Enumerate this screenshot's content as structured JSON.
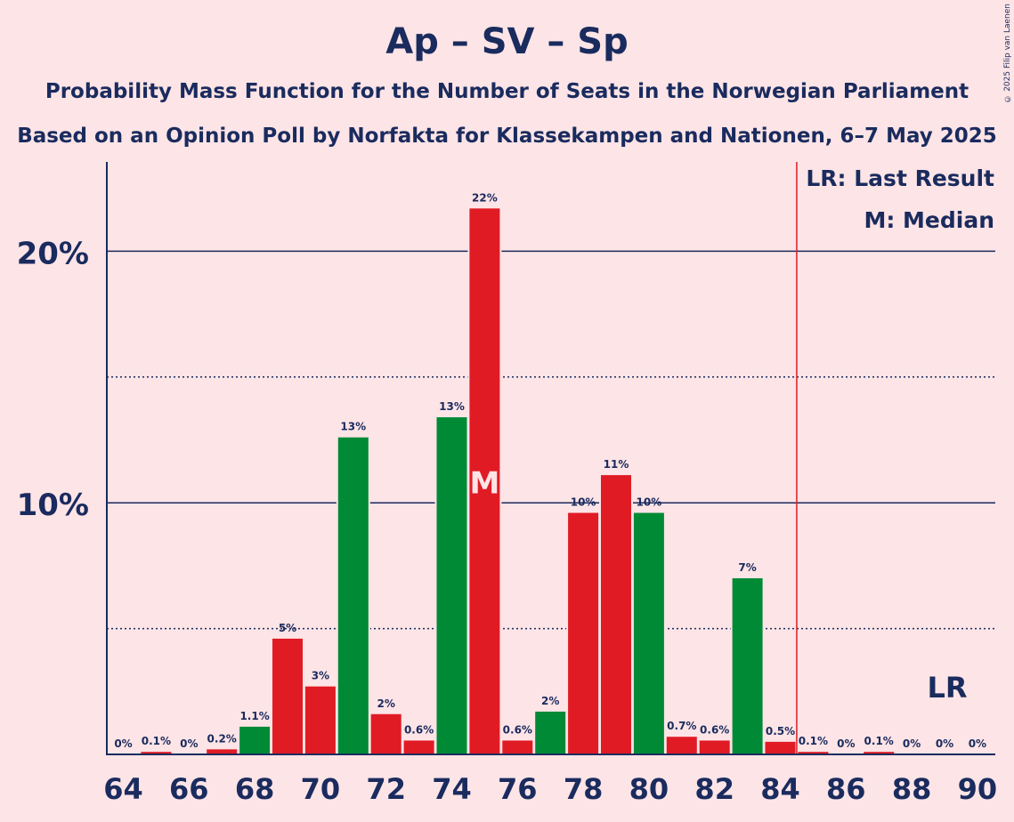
{
  "title": "Ap – SV – Sp",
  "subtitle_1": "Probability Mass Function for the Number of Seats in the Norwegian Parliament",
  "subtitle_2": "Based on an Opinion Poll by Norfakta for Klassekampen and Nationen, 6–7 May 2025",
  "copyright": "© 2025 Filip van Laenen",
  "legend": {
    "last_result": "LR: Last Result",
    "median": "M: Median"
  },
  "colors": {
    "background": "#fde4e6",
    "red_bar": "#e01b24",
    "green_bar": "#008a36",
    "text": "#1a2b5e",
    "last_result_line": "#e01b24"
  },
  "chart_data": {
    "type": "bar",
    "x": [
      64,
      65,
      66,
      67,
      68,
      69,
      70,
      71,
      72,
      73,
      74,
      75,
      76,
      77,
      78,
      79,
      80,
      81,
      82,
      83,
      84,
      85,
      86,
      87,
      88,
      89,
      90
    ],
    "values": [
      0,
      0.1,
      0,
      0.2,
      1.1,
      4.6,
      2.7,
      12.6,
      1.6,
      0.55,
      13.4,
      21.7,
      0.55,
      1.7,
      9.6,
      11.1,
      9.6,
      0.7,
      0.55,
      7.0,
      0.5,
      0.1,
      0,
      0.1,
      0,
      0,
      0
    ],
    "data_labels": [
      "0%",
      "0.1%",
      "0%",
      "0.2%",
      "1.1%",
      "5%",
      "3%",
      "13%",
      "2%",
      "0.6%",
      "13%",
      "22%",
      "0.6%",
      "2%",
      "10%",
      "11%",
      "10%",
      "0.7%",
      "0.6%",
      "7%",
      "0.5%",
      "0.1%",
      "0%",
      "0.1%",
      "0%",
      "0%",
      "0%"
    ],
    "bar_colors": [
      "red",
      "red",
      "red",
      "red",
      "green",
      "red",
      "red",
      "green",
      "red",
      "red",
      "green",
      "red",
      "red",
      "green",
      "red",
      "red",
      "green",
      "red",
      "red",
      "green",
      "red",
      "red",
      "red",
      "red",
      "red",
      "red",
      "red"
    ],
    "x_ticks": [
      "64",
      "66",
      "68",
      "70",
      "72",
      "74",
      "76",
      "78",
      "80",
      "82",
      "84",
      "86",
      "88",
      "90"
    ],
    "y_ticks": [
      {
        "value": 10,
        "label": "10%"
      },
      {
        "value": 20,
        "label": "20%"
      }
    ],
    "dotted_gridlines": [
      5,
      15
    ],
    "ylim": [
      0,
      23.5
    ],
    "xlim": [
      63.5,
      90.5
    ],
    "median": {
      "seat": 75,
      "label": "M"
    },
    "last_result": {
      "seat": 85,
      "label": "LR"
    },
    "grid": true,
    "legend_position": "top-right"
  }
}
